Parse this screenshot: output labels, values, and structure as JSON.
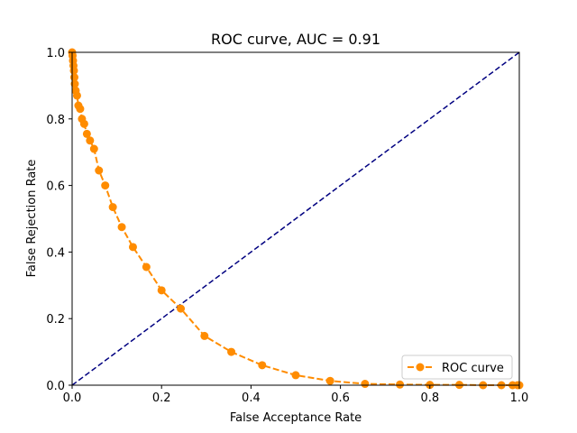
{
  "colors": {
    "roc": "#ff8c00",
    "diagonal": "#000080",
    "axes": "#000000",
    "background": "#ffffff"
  },
  "chart_data": {
    "type": "line",
    "title": "ROC curve, AUC = 0.91",
    "xlabel": "False Acceptance Rate",
    "ylabel": "False Rejection Rate",
    "xlim": [
      0.0,
      1.0
    ],
    "ylim": [
      0.0,
      1.0
    ],
    "xticks": [
      0.0,
      0.2,
      0.4,
      0.6,
      0.8,
      1.0
    ],
    "yticks": [
      0.0,
      0.2,
      0.4,
      0.6,
      0.8,
      1.0
    ],
    "xtick_labels": [
      "0.0",
      "0.2",
      "0.4",
      "0.6",
      "0.8",
      "1.0"
    ],
    "ytick_labels": [
      "0.0",
      "0.2",
      "0.4",
      "0.6",
      "0.8",
      "1.0"
    ],
    "grid": false,
    "legend": {
      "position": "lower-right",
      "entries": [
        "ROC curve"
      ]
    },
    "series": [
      {
        "name": "ROC curve",
        "style": "dashed-line-circle-markers",
        "x": [
          0.0,
          0.001,
          0.002,
          0.003,
          0.004,
          0.005,
          0.006,
          0.008,
          0.011,
          0.014,
          0.018,
          0.022,
          0.027,
          0.033,
          0.04,
          0.049,
          0.06,
          0.074,
          0.091,
          0.111,
          0.136,
          0.166,
          0.2,
          0.243,
          0.296,
          0.356,
          0.425,
          0.5,
          0.577,
          0.655,
          0.733,
          0.8,
          0.866,
          0.919,
          0.96,
          0.985,
          0.996,
          1.0
        ],
        "y": [
          1.0,
          0.99,
          0.975,
          0.96,
          0.945,
          0.925,
          0.905,
          0.885,
          0.87,
          0.84,
          0.83,
          0.8,
          0.785,
          0.755,
          0.735,
          0.71,
          0.645,
          0.6,
          0.535,
          0.475,
          0.415,
          0.355,
          0.285,
          0.23,
          0.148,
          0.1,
          0.06,
          0.03,
          0.013,
          0.004,
          0.002,
          0.001,
          0.001,
          0.0,
          0.0,
          0.0,
          0.0,
          0.0
        ]
      },
      {
        "name": "",
        "style": "dashed-line",
        "x": [
          0.0,
          1.0
        ],
        "y": [
          0.0,
          1.0
        ]
      }
    ]
  }
}
